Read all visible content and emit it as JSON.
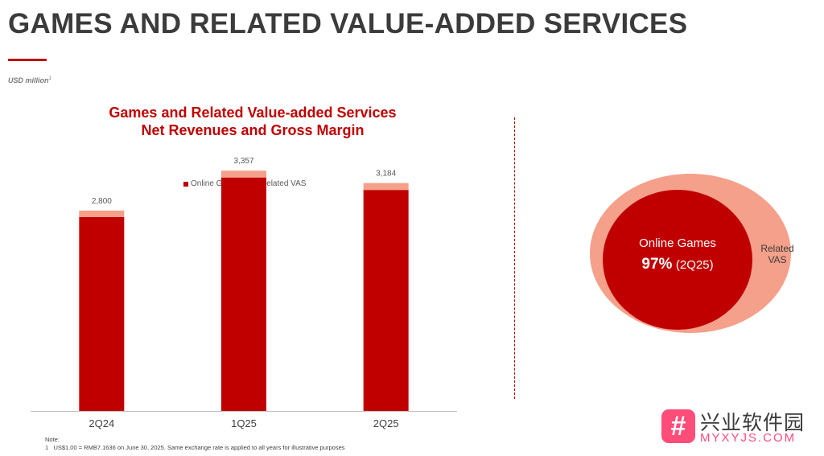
{
  "page": {
    "title": "GAMES AND RELATED VALUE-ADDED SERVICES",
    "unit_note": "USD million",
    "unit_note_sup": "1",
    "note_heading": "Note:",
    "note_number": "1",
    "note_text": "US$1.00 = RMB7.1636 on June 30, 2025. Same exchange rate is applied to all years for illustrative purposes"
  },
  "colors": {
    "accent": "#c00000",
    "vas": "#f4a08a"
  },
  "chart_data": [
    {
      "type": "bar",
      "stacked": true,
      "title": [
        "Games and Related Value-added Services",
        "Net Revenues and Gross Margin"
      ],
      "categories": [
        "2Q24",
        "1Q25",
        "2Q25"
      ],
      "totals": [
        2800,
        3357,
        3184
      ],
      "total_labels": [
        "2,800",
        "3,357",
        "3,184"
      ],
      "series": [
        {
          "name": "Online Games",
          "color": "#c00000",
          "values": [
            2710,
            3262,
            3088
          ]
        },
        {
          "name": "Related VAS",
          "color": "#f4a08a",
          "values": [
            90,
            95,
            96
          ]
        }
      ],
      "ylim": [
        0,
        4000
      ],
      "legend": "top-center",
      "grid": false
    },
    {
      "type": "pie",
      "style": "nested-ellipse",
      "period": "2Q25",
      "slices": [
        {
          "name": "Online Games",
          "value": 97,
          "label": "Online Games",
          "value_label": "97%",
          "period_label": "(2Q25)",
          "color": "#c00000"
        },
        {
          "name": "Related VAS",
          "value": 3,
          "label_line1": "Related",
          "label_line2": "VAS",
          "color": "#f4a08a"
        }
      ]
    }
  ],
  "watermark": {
    "logo": "#",
    "text": "兴业软件园",
    "url": "MYXYJS.COM"
  }
}
